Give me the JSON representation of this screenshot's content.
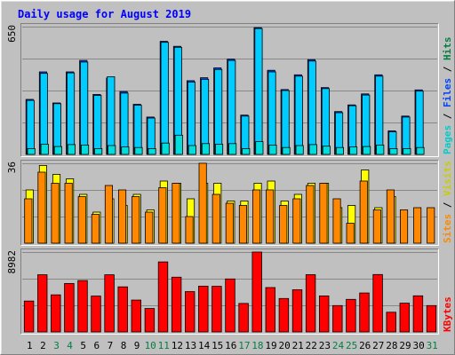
{
  "title": "Daily usage for August 2019",
  "colors": {
    "background": "#C0C0C0",
    "title": "#0000FF",
    "hits": "#0044FF",
    "files": "#00CCFF",
    "pages": "#00DDDD",
    "visits": "#FFFF00",
    "sites": "#FF8800",
    "kbytes": "#FF0000",
    "weekend_day_label": "#008040",
    "weekday_day_label": "#000000"
  },
  "chart_data": [
    {
      "type": "bar",
      "panel": "hits-files-pages",
      "y_max_label": "650",
      "ylim": [
        0,
        650
      ],
      "legend_right": [
        {
          "text": "Pages",
          "color": "#00CCCC"
        },
        {
          "text": " / ",
          "color": "#000000"
        },
        {
          "text": "Files",
          "color": "#0044FF"
        },
        {
          "text": " / ",
          "color": "#000000"
        },
        {
          "text": "Hits",
          "color": "#008040"
        }
      ],
      "categories": [
        "1",
        "2",
        "3",
        "4",
        "5",
        "6",
        "7",
        "8",
        "9",
        "10",
        "11",
        "12",
        "13",
        "14",
        "15",
        "16",
        "17",
        "18",
        "19",
        "20",
        "21",
        "22",
        "23",
        "24",
        "25",
        "26",
        "27",
        "28",
        "29",
        "30",
        "31"
      ],
      "series": [
        {
          "name": "Hits",
          "values": [
            280,
            420,
            262,
            420,
            478,
            305,
            388,
            320,
            255,
            190,
            575,
            550,
            375,
            390,
            440,
            485,
            200,
            645,
            428,
            330,
            405,
            482,
            340,
            218,
            252,
            308,
            405,
            120,
            195,
            328,
            0
          ]
        },
        {
          "name": "Files",
          "values": [
            275,
            412,
            258,
            415,
            470,
            300,
            395,
            312,
            250,
            185,
            570,
            545,
            368,
            382,
            432,
            478,
            195,
            640,
            420,
            325,
            398,
            475,
            335,
            212,
            248,
            302,
            398,
            115,
            190,
            322,
            0
          ]
        },
        {
          "name": "Pages",
          "values": [
            30,
            52,
            40,
            50,
            48,
            30,
            45,
            38,
            35,
            30,
            58,
            98,
            45,
            55,
            52,
            55,
            30,
            65,
            48,
            35,
            45,
            50,
            42,
            35,
            38,
            40,
            48,
            30,
            30,
            35,
            0
          ]
        }
      ]
    },
    {
      "type": "bar",
      "panel": "visits-sites",
      "y_max_label": "36",
      "ylim": [
        0,
        36
      ],
      "legend_right": [
        {
          "text": "Sites",
          "color": "#FF8800"
        },
        {
          "text": " / ",
          "color": "#000000"
        },
        {
          "text": "Visits",
          "color": "#CCCC00"
        }
      ],
      "categories": [
        "1",
        "2",
        "3",
        "4",
        "5",
        "6",
        "7",
        "8",
        "9",
        "10",
        "11",
        "12",
        "13",
        "14",
        "15",
        "16",
        "17",
        "18",
        "19",
        "20",
        "21",
        "22",
        "23",
        "24",
        "25",
        "26",
        "27",
        "28",
        "29",
        "30",
        "31"
      ],
      "series": [
        {
          "name": "Visits",
          "values": [
            24,
            35,
            31,
            29,
            22,
            14,
            20,
            17,
            22,
            15,
            28,
            27,
            20,
            27,
            27,
            19,
            19,
            27,
            28,
            19,
            22,
            27,
            27,
            16,
            17,
            33,
            16,
            21,
            0,
            0,
            0
          ]
        },
        {
          "name": "Sites",
          "values": [
            20,
            32,
            27,
            27,
            21,
            13,
            26,
            24,
            21,
            14,
            25,
            27,
            12,
            36,
            22,
            18,
            17,
            24,
            24,
            17,
            20,
            26,
            27,
            20,
            9,
            28,
            15,
            24,
            15,
            16,
            16
          ]
        }
      ]
    },
    {
      "type": "bar",
      "panel": "kbytes",
      "y_max_label": "8982",
      "ylim": [
        0,
        8982
      ],
      "legend_right": [
        {
          "text": "KBytes",
          "color": "#FF0000"
        }
      ],
      "categories": [
        "1",
        "2",
        "3",
        "4",
        "5",
        "6",
        "7",
        "8",
        "9",
        "10",
        "11",
        "12",
        "13",
        "14",
        "15",
        "16",
        "17",
        "18",
        "19",
        "20",
        "21",
        "22",
        "23",
        "24",
        "25",
        "26",
        "27",
        "28",
        "29",
        "30",
        "31"
      ],
      "series": [
        {
          "name": "KBytes",
          "values": [
            3470,
            6430,
            4170,
            5450,
            5780,
            4030,
            6430,
            5070,
            3580,
            2630,
            7870,
            6160,
            4530,
            5150,
            5130,
            5960,
            3200,
            8982,
            4990,
            3760,
            4740,
            6440,
            4050,
            2960,
            3660,
            4380,
            6460,
            2220,
            3230,
            4060,
            2960
          ]
        }
      ]
    }
  ],
  "day_labels": [
    {
      "text": "1",
      "weekend": false
    },
    {
      "text": "2",
      "weekend": false
    },
    {
      "text": "3",
      "weekend": true
    },
    {
      "text": "4",
      "weekend": true
    },
    {
      "text": "5",
      "weekend": false
    },
    {
      "text": "6",
      "weekend": false
    },
    {
      "text": "7",
      "weekend": false
    },
    {
      "text": "8",
      "weekend": false
    },
    {
      "text": "9",
      "weekend": false
    },
    {
      "text": "10",
      "weekend": true
    },
    {
      "text": "11",
      "weekend": true
    },
    {
      "text": "12",
      "weekend": false
    },
    {
      "text": "13",
      "weekend": false
    },
    {
      "text": "14",
      "weekend": false
    },
    {
      "text": "15",
      "weekend": false
    },
    {
      "text": "16",
      "weekend": false
    },
    {
      "text": "17",
      "weekend": true
    },
    {
      "text": "18",
      "weekend": true
    },
    {
      "text": "19",
      "weekend": false
    },
    {
      "text": "20",
      "weekend": false
    },
    {
      "text": "21",
      "weekend": false
    },
    {
      "text": "22",
      "weekend": false
    },
    {
      "text": "23",
      "weekend": false
    },
    {
      "text": "24",
      "weekend": true
    },
    {
      "text": "25",
      "weekend": true
    },
    {
      "text": "26",
      "weekend": false
    },
    {
      "text": "27",
      "weekend": false
    },
    {
      "text": "28",
      "weekend": false
    },
    {
      "text": "29",
      "weekend": false
    },
    {
      "text": "30",
      "weekend": false
    },
    {
      "text": "31",
      "weekend": true
    }
  ]
}
